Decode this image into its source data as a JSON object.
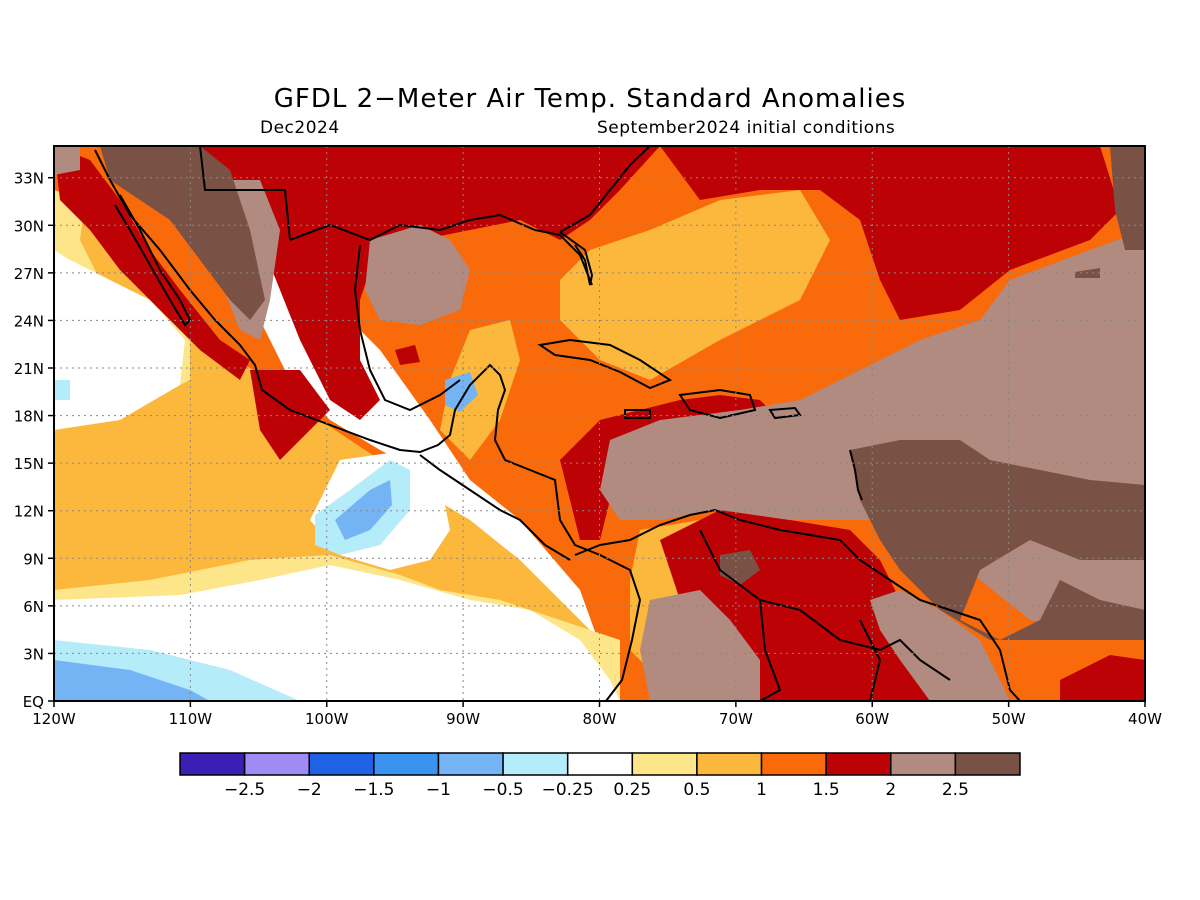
{
  "title": "GFDL 2−Meter Air Temp. Standard Anomalies",
  "subtitle_left": "Dec2024",
  "subtitle_right": "September2024 initial conditions",
  "map": {
    "lon_range": [
      -120,
      -40
    ],
    "lat_range": [
      0,
      35
    ],
    "x_ticks": [
      {
        "value": -120,
        "label": "120W"
      },
      {
        "value": -110,
        "label": "110W"
      },
      {
        "value": -100,
        "label": "100W"
      },
      {
        "value": -90,
        "label": "90W"
      },
      {
        "value": -80,
        "label": "80W"
      },
      {
        "value": -70,
        "label": "70W"
      },
      {
        "value": -60,
        "label": "60W"
      },
      {
        "value": -50,
        "label": "50W"
      },
      {
        "value": -40,
        "label": "40W"
      }
    ],
    "y_ticks": [
      {
        "value": 0,
        "label": "EQ"
      },
      {
        "value": 3,
        "label": "3N"
      },
      {
        "value": 6,
        "label": "6N"
      },
      {
        "value": 9,
        "label": "9N"
      },
      {
        "value": 12,
        "label": "12N"
      },
      {
        "value": 15,
        "label": "15N"
      },
      {
        "value": 18,
        "label": "18N"
      },
      {
        "value": 21,
        "label": "21N"
      },
      {
        "value": 24,
        "label": "24N"
      },
      {
        "value": 27,
        "label": "27N"
      },
      {
        "value": 30,
        "label": "30N"
      },
      {
        "value": 33,
        "label": "33N"
      }
    ],
    "grid": "dotted"
  },
  "colorbar": {
    "colors": [
      "#3b1fb5",
      "#a08bf5",
      "#1f62e6",
      "#3a93f0",
      "#74b4f4",
      "#b4ecfa",
      "#ffffff",
      "#fde68a",
      "#fbb83c",
      "#f96a0a",
      "#bd0205",
      "#b18b80",
      "#7a5245"
    ],
    "labels": [
      "−2.5",
      "−2",
      "−1.5",
      "−1",
      "−0.5",
      "−0.25",
      "0.25",
      "0.5",
      "1",
      "1.5",
      "2",
      "2.5"
    ]
  }
}
